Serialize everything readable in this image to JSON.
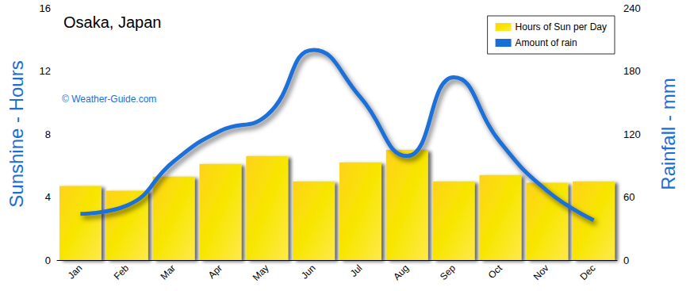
{
  "chart_data": {
    "type": "bar",
    "title": "Osaka, Japan",
    "annotations": [
      "© Weather-Guide.com"
    ],
    "categories": [
      "Jan",
      "Feb",
      "Mar",
      "Apr",
      "May",
      "Jun",
      "Jul",
      "Aug",
      "Sep",
      "Oct",
      "Nov",
      "Dec"
    ],
    "y_label": "Sunshine - Hours",
    "y2_label": "Rainfall - mm",
    "series": [
      {
        "name": "Hours of Sun per Day",
        "type": "bar",
        "color": "#f7e600",
        "values": [
          4.7,
          4.4,
          5.3,
          6.1,
          6.6,
          5.0,
          6.2,
          7.0,
          5.0,
          5.4,
          4.9,
          5.0
        ]
      },
      {
        "name": "Amount of rain",
        "type": "line",
        "axis": "y2",
        "color": "#1a6fd6",
        "line_style": "solid",
        "marker": "none",
        "values": [
          44,
          52,
          94,
          123,
          138,
          200,
          155,
          99,
          174,
          112,
          66,
          38
        ]
      }
    ],
    "ylim": [
      0,
      16
    ],
    "yticks": [
      0,
      4,
      8,
      12,
      16
    ],
    "y2lim": [
      0,
      240
    ],
    "y2ticks": [
      0,
      60,
      120,
      180,
      240
    ],
    "grid": false,
    "legend": "upper right"
  }
}
